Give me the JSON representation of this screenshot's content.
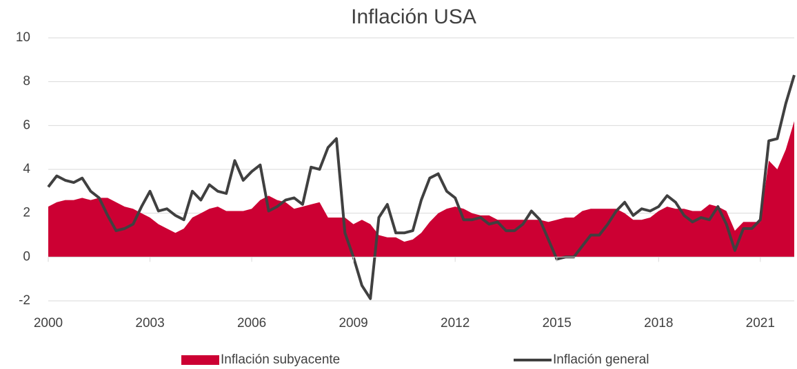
{
  "chart_data": {
    "type": "area_line",
    "title": "Inflación USA",
    "x": [
      2000,
      2000.25,
      2000.5,
      2000.75,
      2001,
      2001.25,
      2001.5,
      2001.75,
      2002,
      2002.25,
      2002.5,
      2002.75,
      2003,
      2003.25,
      2003.5,
      2003.75,
      2004,
      2004.25,
      2004.5,
      2004.75,
      2005,
      2005.25,
      2005.5,
      2005.75,
      2006,
      2006.25,
      2006.5,
      2006.75,
      2007,
      2007.25,
      2007.5,
      2007.75,
      2008,
      2008.25,
      2008.5,
      2008.75,
      2009,
      2009.25,
      2009.5,
      2009.75,
      2010,
      2010.25,
      2010.5,
      2010.75,
      2011,
      2011.25,
      2011.5,
      2011.75,
      2012,
      2012.25,
      2012.5,
      2012.75,
      2013,
      2013.25,
      2013.5,
      2013.75,
      2014,
      2014.25,
      2014.5,
      2014.75,
      2015,
      2015.25,
      2015.5,
      2015.75,
      2016,
      2016.25,
      2016.5,
      2016.75,
      2017,
      2017.25,
      2017.5,
      2017.75,
      2018,
      2018.25,
      2018.5,
      2018.75,
      2019,
      2019.25,
      2019.5,
      2019.75,
      2020,
      2020.25,
      2020.5,
      2020.75,
      2021,
      2021.25,
      2021.5,
      2021.75,
      2022
    ],
    "series": [
      {
        "name": "Inflación subyacente",
        "color": "#cc0033",
        "kind": "area",
        "values": [
          2.3,
          2.5,
          2.6,
          2.6,
          2.7,
          2.6,
          2.7,
          2.7,
          2.5,
          2.3,
          2.2,
          2.0,
          1.8,
          1.5,
          1.3,
          1.1,
          1.3,
          1.8,
          2.0,
          2.2,
          2.3,
          2.1,
          2.1,
          2.1,
          2.2,
          2.6,
          2.8,
          2.6,
          2.5,
          2.2,
          2.3,
          2.4,
          2.5,
          1.8,
          1.8,
          1.8,
          1.5,
          1.7,
          1.5,
          1.0,
          0.9,
          0.9,
          0.7,
          0.8,
          1.1,
          1.6,
          2.0,
          2.2,
          2.3,
          2.2,
          2.0,
          1.9,
          1.9,
          1.7,
          1.7,
          1.7,
          1.7,
          1.7,
          1.7,
          1.6,
          1.7,
          1.8,
          1.8,
          2.1,
          2.2,
          2.2,
          2.2,
          2.2,
          2.0,
          1.7,
          1.7,
          1.8,
          2.1,
          2.3,
          2.2,
          2.2,
          2.1,
          2.1,
          2.4,
          2.3,
          2.1,
          1.2,
          1.6,
          1.6,
          1.6,
          4.4,
          4.0,
          4.9,
          6.2
        ]
      },
      {
        "name": "Inflación general",
        "color": "#404040",
        "kind": "line",
        "values": [
          3.2,
          3.7,
          3.5,
          3.4,
          3.6,
          3.0,
          2.7,
          1.9,
          1.2,
          1.3,
          1.5,
          2.3,
          3.0,
          2.1,
          2.2,
          1.9,
          1.7,
          3.0,
          2.6,
          3.3,
          3.0,
          2.9,
          4.4,
          3.5,
          3.9,
          4.2,
          2.1,
          2.3,
          2.6,
          2.7,
          2.4,
          4.1,
          4.0,
          5.0,
          5.4,
          1.1,
          0.0,
          -1.3,
          -1.9,
          1.8,
          2.4,
          1.1,
          1.1,
          1.2,
          2.6,
          3.6,
          3.8,
          3.0,
          2.7,
          1.7,
          1.7,
          1.8,
          1.5,
          1.6,
          1.2,
          1.2,
          1.5,
          2.1,
          1.7,
          0.8,
          -0.1,
          0.0,
          0.0,
          0.5,
          1.0,
          1.0,
          1.5,
          2.1,
          2.5,
          1.9,
          2.2,
          2.1,
          2.3,
          2.8,
          2.5,
          1.9,
          1.6,
          1.8,
          1.7,
          2.3,
          1.5,
          0.3,
          1.3,
          1.3,
          1.7,
          5.3,
          5.4,
          7.0,
          8.3
        ]
      }
    ],
    "xlim": [
      2000,
      2022
    ],
    "xticks": [
      2000,
      2003,
      2006,
      2009,
      2012,
      2015,
      2018,
      2021
    ],
    "ylim": [
      -2,
      10
    ],
    "yticks": [
      -2,
      0,
      2,
      4,
      6,
      8,
      10
    ],
    "grid": true,
    "legend": "bottom"
  }
}
